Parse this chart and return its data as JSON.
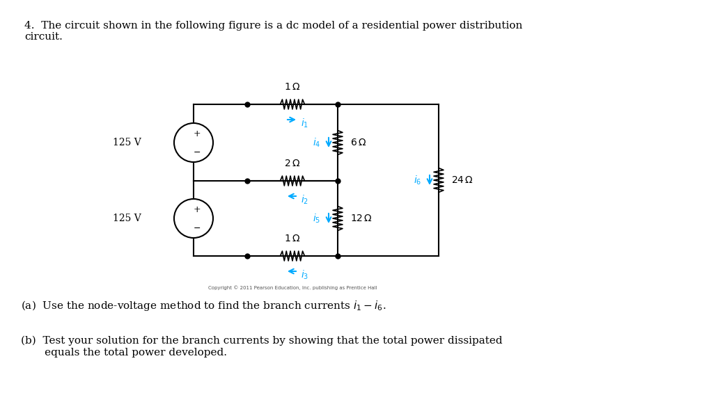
{
  "title_text": "4.  The circuit shown in the following figure is a dc model of a residential power distribution\ncircuit.",
  "bg_color": "#ffffff",
  "circuit_color": "#000000",
  "current_color": "#00aaff",
  "resistor_color": "#000000",
  "text_color": "#000000",
  "copyright_text": "Copyright © 2011 Pearson Education, Inc. publishing as Prentice Hall",
  "part_a": "(a)  Use the node-voltage method to find the branch currents $i_1 - i_6$.",
  "part_b": "(b)  Test your solution for the branch currents by showing that the total power dissipated\n       equals the total power developed."
}
